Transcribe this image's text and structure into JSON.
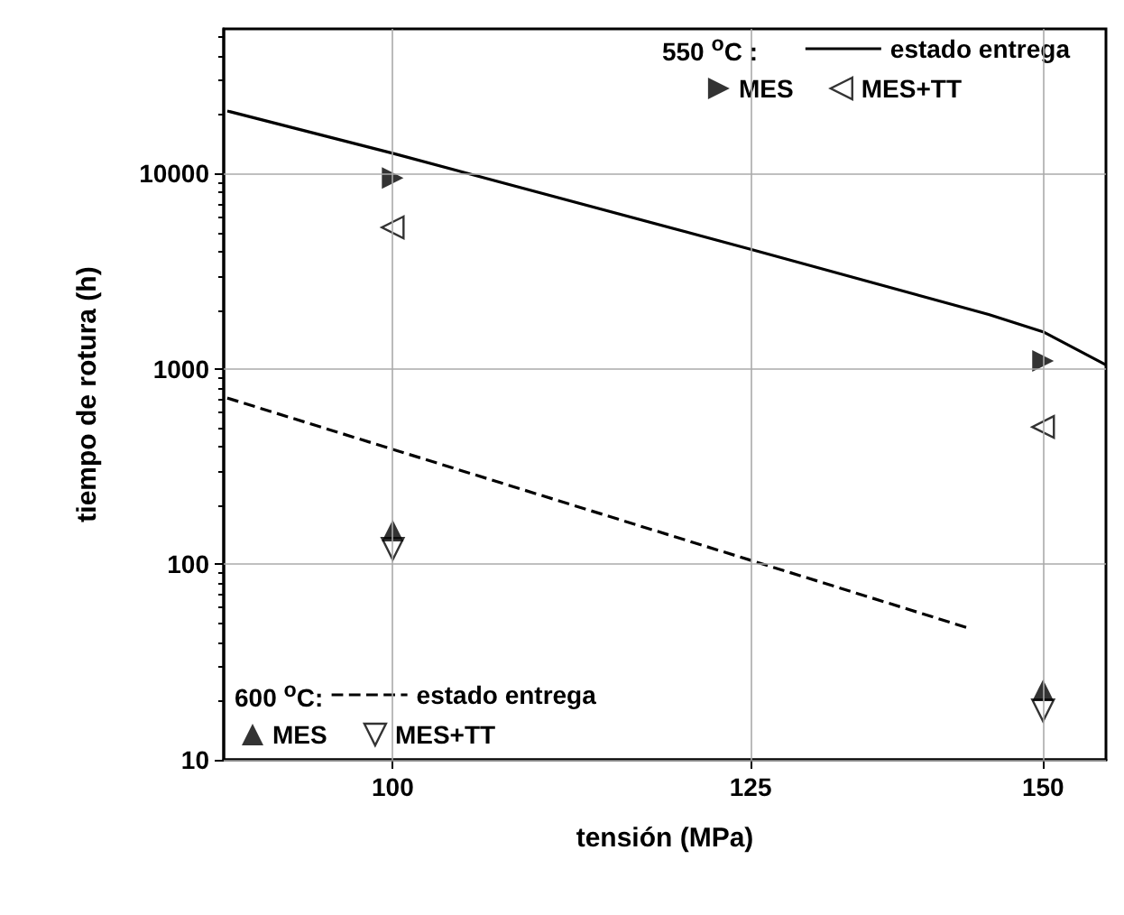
{
  "chart_data": {
    "type": "line",
    "xlabel": "tensión (MPa)",
    "ylabel": "tiempo de rotura (h)",
    "annotations": [
      "550 $^{o}$C :",
      "600 $^{o}$C:"
    ],
    "log": "xy",
    "xlim": [
      90,
      156
    ],
    "xticks": [
      100,
      125,
      150
    ],
    "ylim": [
      10,
      55000
    ],
    "yticks": [
      10,
      100,
      1000,
      10000
    ],
    "grid": true,
    "legend": [
      "top right",
      "bottom left"
    ],
    "series": [
      {
        "name": "estado entrega",
        "color": "#000000",
        "line_style": "solid",
        "marker": "none",
        "x": [
          90.2,
          100,
          125,
          145,
          150,
          156
        ],
        "values": [
          20900,
          12700,
          4100,
          1900,
          1550,
          1050
        ]
      },
      {
        "name": "MES",
        "type": "scatter",
        "color": "#000000",
        "marker": "triangle-right",
        "x": [
          100,
          150
        ],
        "values": [
          9500,
          1100
        ]
      },
      {
        "name": "MES+TT",
        "type": "scatter",
        "color": "#000000",
        "marker": "triangle-left-open",
        "x": [
          100,
          150
        ],
        "values": [
          5300,
          505
        ]
      },
      {
        "name": "estado entrega",
        "color": "#000000",
        "line_style": "dashed",
        "marker": "none",
        "x": [
          90.2,
          125,
          143.3
        ],
        "values": [
          710,
          105,
          47
        ]
      },
      {
        "name": "MES",
        "type": "scatter",
        "color": "#000000",
        "marker": "triangle-up",
        "x": [
          100,
          150
        ],
        "values": [
          149,
          22.7
        ]
      },
      {
        "name": "MES+TT",
        "type": "scatter",
        "color": "#000000",
        "marker": "triangle-down-open",
        "x": [
          100,
          150
        ],
        "values": [
          120,
          17.9
        ]
      }
    ]
  }
}
